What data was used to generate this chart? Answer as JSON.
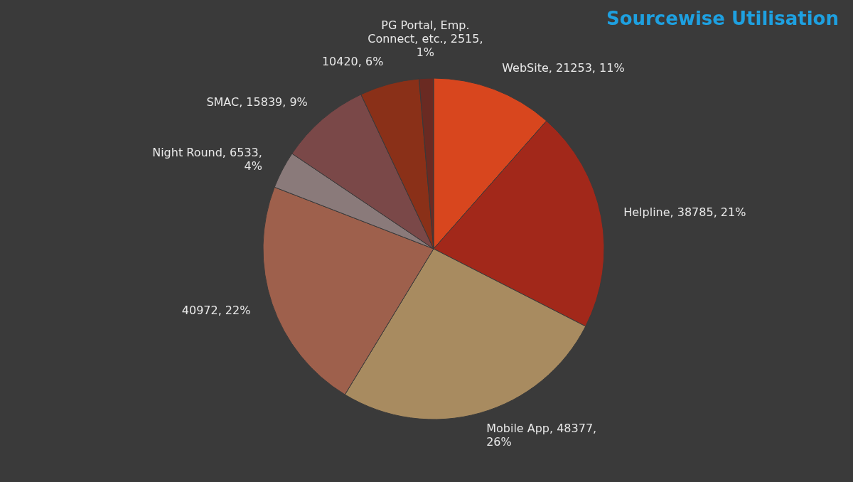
{
  "chart_data": {
    "type": "pie",
    "title": "Sourcewise Utilisation",
    "categories": [
      "WebSite",
      "Helpline",
      "Mobile App",
      null,
      "Night Round",
      "SMAC",
      null,
      "PG Portal, Emp. Connect, etc."
    ],
    "values": [
      21253,
      38785,
      48377,
      40972,
      6533,
      15839,
      10420,
      2515
    ],
    "value_labels": [
      "21253, 11%",
      "38785, 21%",
      "48377, 26%",
      "40972, 22%",
      "6533, 4%",
      "15839, 9%",
      "10420, 6%",
      "2515, 1%"
    ],
    "colors": [
      "#d8461e",
      "#a2281a",
      "#a88b60",
      "#9e604c",
      "#8a7a7a",
      "#7a4848",
      "#8a3018",
      "#6a2a22"
    ],
    "legend": false
  }
}
